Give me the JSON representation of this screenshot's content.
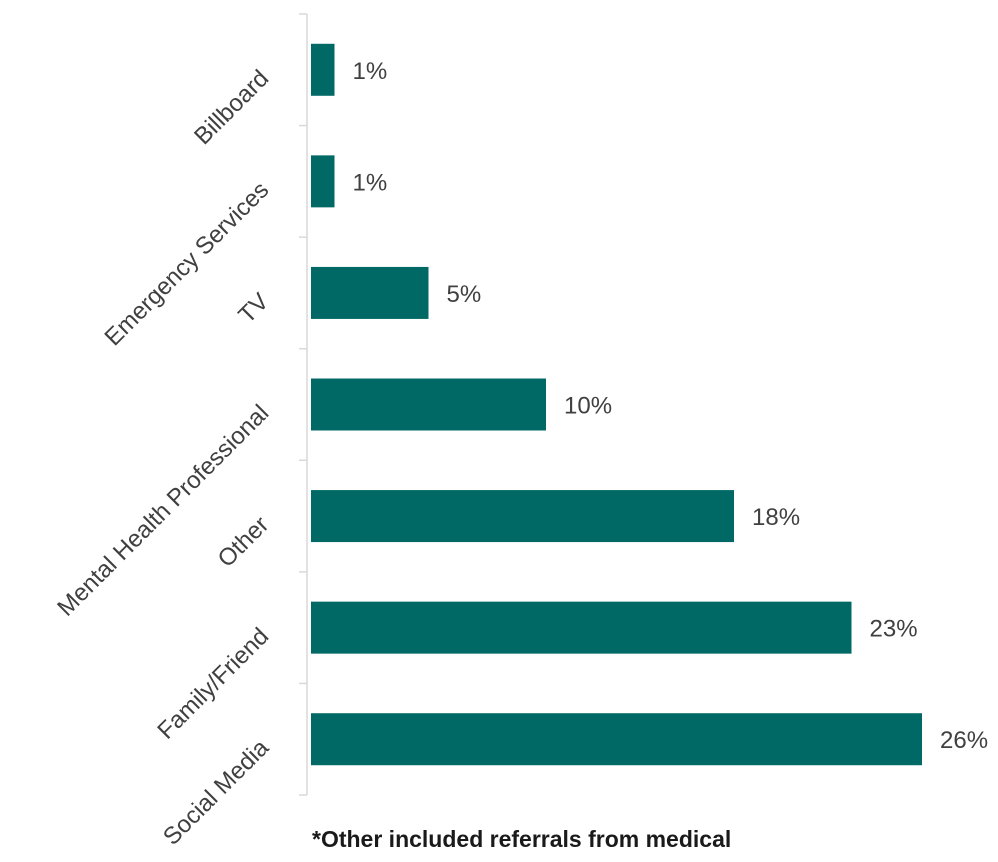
{
  "chart_data": {
    "type": "bar",
    "orientation": "horizontal",
    "categories": [
      "Billboard",
      "Emergency Services",
      "TV",
      "Mental Health Professional",
      "Other",
      "Family/Friend",
      "Social Media"
    ],
    "values": [
      1,
      1,
      5,
      10,
      18,
      23,
      26
    ],
    "data_labels": [
      "1%",
      "1%",
      "5%",
      "10%",
      "18%",
      "23%",
      "26%"
    ],
    "unit": "%",
    "xlim": [
      0,
      26
    ],
    "grid": false,
    "legend": "none",
    "bar_color": "#006966",
    "axis_color": "#d9d9d9",
    "label_color": "#404040"
  },
  "footnote": "*Other included referrals from medical"
}
